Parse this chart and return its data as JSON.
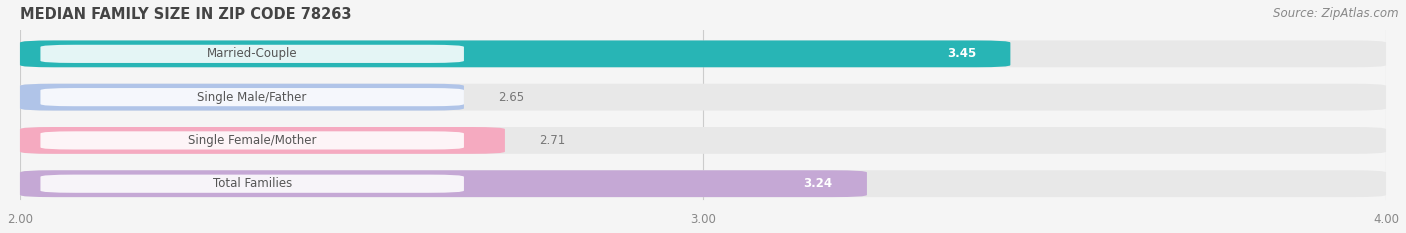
{
  "title": "MEDIAN FAMILY SIZE IN ZIP CODE 78263",
  "source": "Source: ZipAtlas.com",
  "categories": [
    "Married-Couple",
    "Single Male/Father",
    "Single Female/Mother",
    "Total Families"
  ],
  "values": [
    3.45,
    2.65,
    2.71,
    3.24
  ],
  "bar_colors": [
    "#28b5b5",
    "#b0c4e8",
    "#f5aac0",
    "#c5a8d5"
  ],
  "bg_bar_color": "#e8e8e8",
  "xlim": [
    2.0,
    4.0
  ],
  "xticks": [
    2.0,
    3.0,
    4.0
  ],
  "xtick_labels": [
    "2.00",
    "3.00",
    "4.00"
  ],
  "bar_height": 0.62,
  "label_fontsize": 8.5,
  "value_fontsize": 8.5,
  "title_fontsize": 10.5,
  "source_fontsize": 8.5,
  "background_color": "#f5f5f5",
  "tick_color": "#888888",
  "label_text_color": "#555555",
  "value_label_color_inside": "#ffffff",
  "value_label_color_outside": "#777777",
  "grid_color": "#cccccc",
  "bar_gap": 0.18
}
